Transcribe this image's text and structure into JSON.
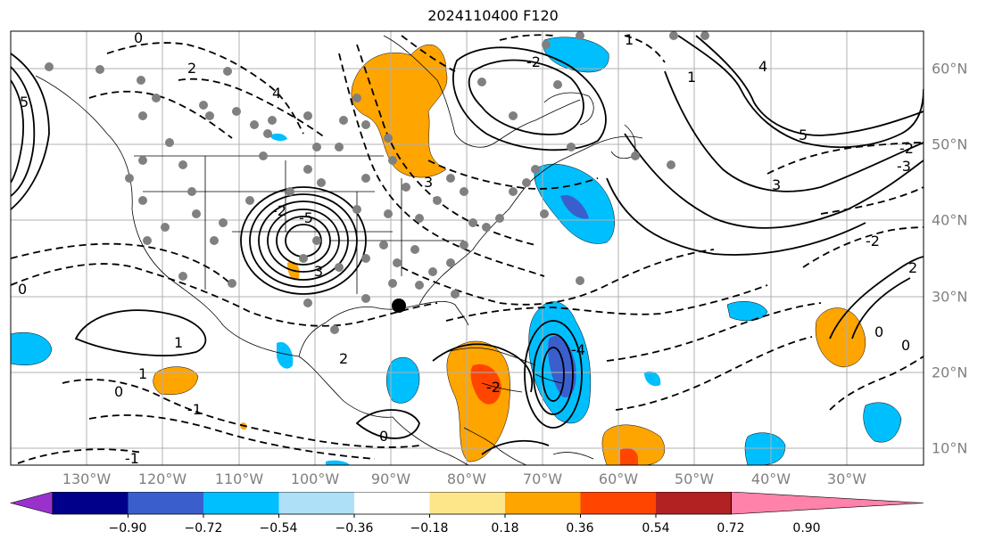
{
  "title": "2024110400 F120",
  "map": {
    "lon_labels": [
      "130°W",
      "120°W",
      "110°W",
      "100°W",
      "90°W",
      "80°W",
      "70°W",
      "60°W",
      "50°W",
      "40°W",
      "30°W"
    ],
    "lat_labels": [
      "60°N",
      "50°N",
      "40°N",
      "30°N",
      "20°N",
      "10°N"
    ],
    "contour_labels": [
      "0",
      "2",
      "4",
      "1",
      "2",
      "5",
      "1",
      "0",
      "-1",
      "-1",
      "-2",
      "3",
      "-5",
      "0",
      "-2",
      "1",
      "0",
      "-2",
      "0",
      "-4",
      "1",
      "3",
      "4",
      "5",
      "-2",
      "-3",
      "-2",
      "0",
      "2",
      "3"
    ],
    "colors": {
      "land_outline": "#000000",
      "gridline": "#b0b0b0",
      "station_dot": "#808080"
    }
  },
  "colorbar": {
    "tick_labels": [
      "−0.90",
      "−0.72",
      "−0.54",
      "−0.36",
      "−0.18",
      "0.18",
      "0.36",
      "0.54",
      "0.72",
      "0.90"
    ],
    "colors": [
      "#9932cc",
      "#00008b",
      "#3a5fcd",
      "#00bfff",
      "#aee0f8",
      "#ffffff",
      "#fde68a",
      "#ffa500",
      "#ff4500",
      "#b22222",
      "#ff82ab"
    ]
  }
}
